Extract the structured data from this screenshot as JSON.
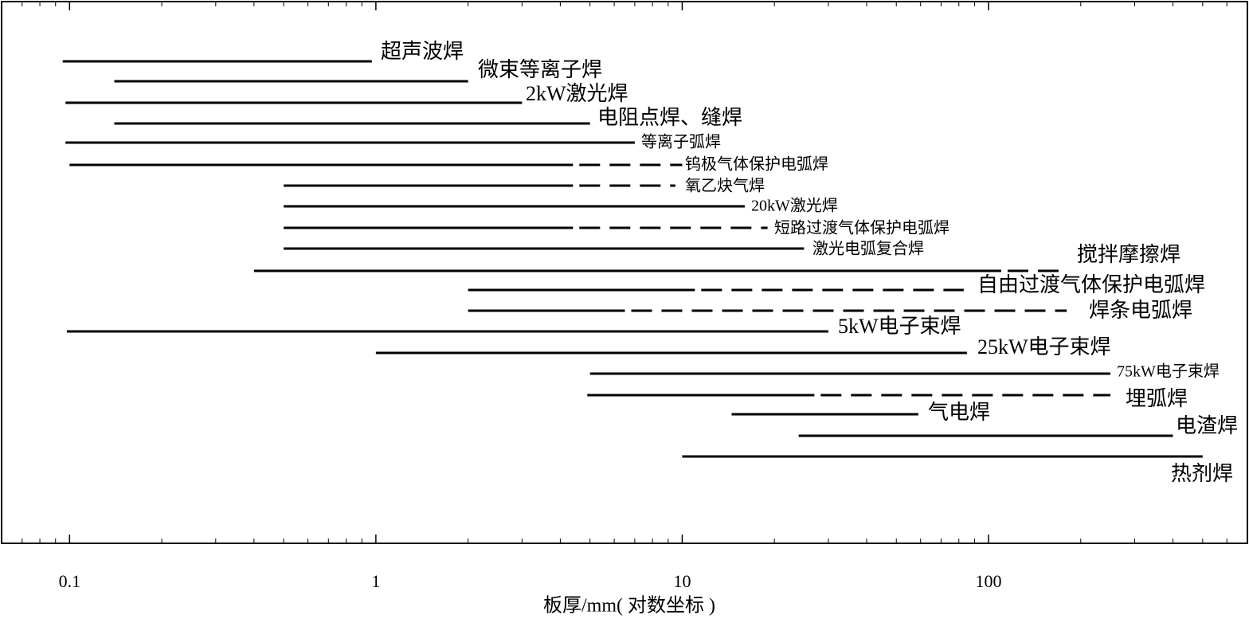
{
  "chart_data": {
    "type": "range",
    "xlabel": "板厚/mm( 对数坐标 )",
    "xscale": "log",
    "xlim": [
      0.06,
      700
    ],
    "xticks": [
      0.1,
      1,
      10,
      100
    ],
    "xminor": [
      0.07,
      0.08,
      0.09,
      0.2,
      0.3,
      0.4,
      0.5,
      0.6,
      0.7,
      0.8,
      0.9,
      2,
      3,
      4,
      5,
      6,
      7,
      8,
      9,
      20,
      30,
      40,
      50,
      60,
      70,
      80,
      90,
      200,
      300,
      400,
      500,
      600
    ],
    "color": "#000000",
    "rows": [
      {
        "name": "超声波焊",
        "start": 0.095,
        "end": 0.97
      },
      {
        "name": "微束等离子焊",
        "start": 0.14,
        "end": 2
      },
      {
        "name": "2kW激光焊",
        "start": 0.097,
        "end": 3
      },
      {
        "name": "电阻点焊、缝焊",
        "start": 0.14,
        "end": 5
      },
      {
        "name": "等离子弧焊",
        "start": 0.097,
        "end": 7
      },
      {
        "name": "钨极气体保护电弧焊",
        "start": 0.1,
        "end": 4.4,
        "dashed_end": 10
      },
      {
        "name": "氧乙炔气焊",
        "start": 0.5,
        "end": 4.4,
        "dashed_end": 9.5
      },
      {
        "name": "20kW激光焊",
        "start": 0.5,
        "end": 16
      },
      {
        "name": "短路过渡气体保护电弧焊",
        "start": 0.5,
        "end": 4.4,
        "dashed_end": 19
      },
      {
        "name": "激光电弧复合焊",
        "start": 0.5,
        "end": 25
      },
      {
        "name": "搅拌摩擦焊",
        "start": 0.4,
        "end": 110,
        "dashed_end": 180
      },
      {
        "name": "自由过渡气体保护电弧焊",
        "start": 2,
        "end": 11,
        "dashed_end": 83
      },
      {
        "name": "焊条电弧焊",
        "start": 2,
        "end": 6.5,
        "dashed_end": 180
      },
      {
        "name": "5kW电子束焊",
        "start": 0.098,
        "end": 30
      },
      {
        "name": "25kW电子束焊",
        "start": 1,
        "end": 85
      },
      {
        "name": "75kW电子束焊",
        "start": 5,
        "end": 250
      },
      {
        "name": "埋弧焊",
        "start": 4.9,
        "end": 27,
        "dashed_end": 250
      },
      {
        "name": "气电焊",
        "start": 14.5,
        "end": 59
      },
      {
        "name": "电渣焊",
        "start": 24,
        "end": 400
      },
      {
        "name": "热剂焊",
        "start": 10,
        "end": 500
      }
    ]
  }
}
